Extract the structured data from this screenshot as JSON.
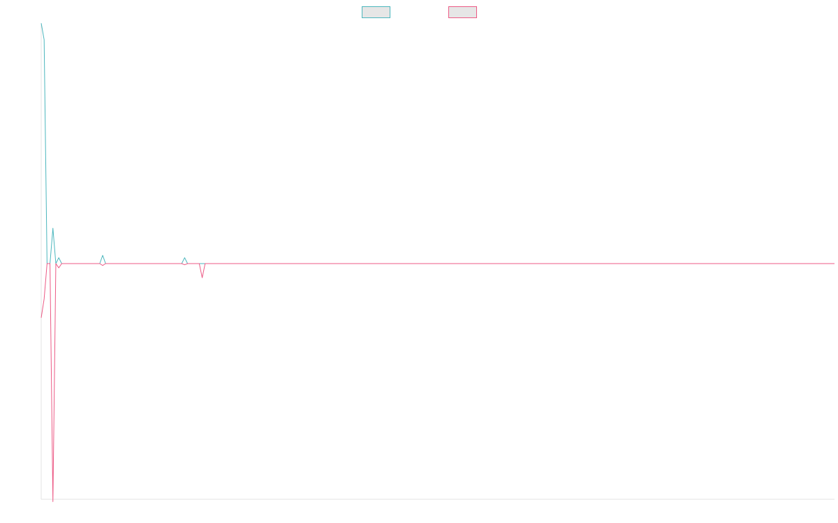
{
  "chart_data": {
    "type": "line",
    "title": "",
    "xlabel": "",
    "ylabel": "",
    "x": [
      0,
      1,
      2,
      3,
      4,
      5,
      6,
      7,
      8,
      9,
      10,
      11,
      12,
      13,
      14,
      15,
      16,
      17,
      18,
      19,
      20,
      21,
      22,
      23,
      24,
      25,
      26,
      27,
      28,
      29,
      30,
      31,
      32,
      33,
      34,
      35,
      36,
      37,
      38,
      39,
      40,
      41,
      42,
      43,
      44,
      45,
      46,
      47,
      48,
      49,
      50,
      51,
      52,
      53,
      54,
      55,
      56,
      57,
      58,
      59,
      60,
      61,
      62,
      63,
      64,
      65,
      66,
      67,
      68,
      69,
      70,
      71,
      72,
      73,
      74,
      75,
      76,
      77,
      78,
      79,
      80,
      81,
      82,
      83,
      84,
      85,
      86,
      87,
      88,
      89,
      90,
      91,
      92,
      93,
      94,
      95,
      96,
      97,
      98,
      99,
      100,
      101,
      102,
      103,
      104,
      105,
      106,
      107,
      108,
      109,
      110,
      111,
      112,
      113,
      114,
      115,
      116,
      117,
      118,
      119,
      120,
      121,
      122,
      123,
      124,
      125,
      126,
      127,
      128,
      129,
      130,
      131,
      132,
      133,
      134,
      135,
      136,
      137,
      138,
      139,
      140,
      141,
      142,
      143,
      144,
      145,
      146,
      147,
      148,
      149,
      150,
      151,
      152,
      153,
      154,
      155,
      156,
      157,
      158,
      159,
      160,
      161,
      162,
      163,
      164,
      165,
      166,
      167,
      168,
      169,
      170,
      171,
      172,
      173,
      174,
      175,
      176,
      177,
      178,
      179,
      180,
      181,
      182,
      183,
      184,
      185,
      186,
      187,
      188,
      189,
      190,
      191,
      192,
      193,
      194,
      195,
      196,
      197,
      198,
      199,
      200,
      201,
      202,
      203,
      204,
      205,
      206,
      207,
      208,
      209,
      210,
      211,
      212,
      213,
      214,
      215,
      216,
      217,
      218,
      219,
      220,
      221,
      222,
      223,
      224,
      225,
      226,
      227,
      228,
      229,
      230,
      231,
      232,
      233,
      234,
      235,
      236,
      237,
      238,
      239,
      240,
      241,
      242,
      243,
      244,
      245,
      246,
      247,
      248,
      249,
      250,
      251,
      252,
      253,
      254,
      255,
      256,
      257,
      258,
      259,
      260,
      261,
      262,
      263,
      264,
      265,
      266,
      267,
      268,
      269,
      270,
      271
    ],
    "ylim": [
      -100,
      100
    ],
    "grid": false,
    "legend_position": "top-center",
    "series": [
      {
        "name": "",
        "color": "#4bb6bd",
        "sparse_points": [
          [
            0,
            102
          ],
          [
            1,
            95
          ],
          [
            2,
            0
          ],
          [
            3,
            0
          ],
          [
            4,
            15
          ],
          [
            5,
            0
          ],
          [
            6,
            2.5
          ],
          [
            7,
            0
          ],
          [
            20,
            0
          ],
          [
            21,
            3.5
          ],
          [
            22,
            0
          ],
          [
            48,
            0
          ],
          [
            49,
            2.5
          ],
          [
            50,
            0
          ],
          [
            271,
            0
          ]
        ]
      },
      {
        "name": "",
        "color": "#ec5a85",
        "sparse_points": [
          [
            0,
            -23
          ],
          [
            1,
            -15
          ],
          [
            2,
            0
          ],
          [
            3,
            0
          ],
          [
            4,
            -101
          ],
          [
            5,
            0
          ],
          [
            6,
            -1.8
          ],
          [
            7,
            0
          ],
          [
            20,
            0
          ],
          [
            21,
            -0.8
          ],
          [
            22,
            0
          ],
          [
            48,
            0
          ],
          [
            49,
            -0.5
          ],
          [
            50,
            0
          ],
          [
            54,
            0
          ],
          [
            55,
            -6
          ],
          [
            56,
            0
          ],
          [
            271,
            0
          ]
        ]
      }
    ]
  }
}
